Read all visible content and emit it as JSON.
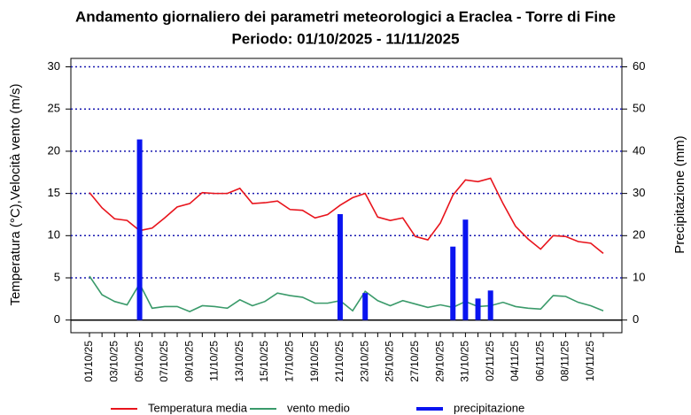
{
  "chart_data": {
    "type": "line",
    "title": "Andamento giornaliero dei parametri meteorologici a Eraclea - Torre di Fine",
    "subtitle": "Periodo:  01/10/2025 -  11/11/2025",
    "y_label": "Temperatura (°C),Velocità vento (m/s)",
    "y2_label": "Precipitazione (mm)",
    "categories": [
      "01/10/25",
      null,
      "03/10/25",
      null,
      "05/10/25",
      null,
      "07/10/25",
      null,
      "09/10/25",
      null,
      "11/10/25",
      null,
      "13/10/25",
      null,
      "15/10/25",
      null,
      "17/10/25",
      null,
      "19/10/25",
      null,
      "21/10/25",
      null,
      "23/10/25",
      null,
      "25/10/25",
      null,
      "27/10/25",
      null,
      "29/10/25",
      null,
      "31/10/25",
      null,
      "02/11/25",
      null,
      "04/11/25",
      null,
      "06/11/25",
      null,
      "08/11/25",
      null,
      "10/11/25",
      null
    ],
    "series": [
      {
        "name": "Temperatura media",
        "color": "#e8141c",
        "kind": "line",
        "values": [
          15.1,
          13.3,
          12.0,
          11.8,
          10.6,
          10.9,
          12.1,
          13.4,
          13.8,
          15.1,
          15.0,
          15.0,
          15.6,
          13.8,
          13.9,
          14.1,
          13.1,
          13.0,
          12.1,
          12.5,
          13.6,
          14.5,
          15.0,
          12.2,
          11.8,
          12.1,
          9.9,
          9.5,
          11.5,
          14.8,
          16.6,
          16.4,
          16.8,
          13.8,
          11.1,
          9.6,
          8.4,
          10.0,
          9.9,
          9.3,
          9.1,
          7.9
        ]
      },
      {
        "name": "vento medio",
        "color": "#3a9a6a",
        "kind": "line",
        "values": [
          5.2,
          3.0,
          2.2,
          1.8,
          4.3,
          1.4,
          1.6,
          1.6,
          1.0,
          1.7,
          1.6,
          1.4,
          2.4,
          1.7,
          2.2,
          3.2,
          2.9,
          2.7,
          2.0,
          2.0,
          2.3,
          1.1,
          3.4,
          2.3,
          1.7,
          2.3,
          1.9,
          1.5,
          1.8,
          1.5,
          2.2,
          1.6,
          1.7,
          2.1,
          1.6,
          1.4,
          1.3,
          2.9,
          2.8,
          2.1,
          1.7,
          1.1
        ]
      },
      {
        "name": "precipitazione",
        "color": "#0a14f0",
        "kind": "bar",
        "axis": "y2",
        "values": [
          0,
          0,
          0,
          0,
          42.8,
          0,
          0,
          0,
          0,
          0,
          0,
          0,
          0,
          0,
          0,
          0,
          0,
          0,
          0,
          0,
          25.1,
          0,
          6.4,
          0,
          0,
          0,
          0,
          0,
          0,
          17.4,
          23.8,
          5.1,
          7.0,
          0,
          0,
          0,
          0,
          0,
          0,
          0,
          0,
          0
        ]
      }
    ],
    "ylim": [
      -1.5,
      31
    ],
    "yticks": [
      0,
      5,
      10,
      15,
      20,
      25,
      30
    ],
    "y2lim": [
      -3,
      62
    ],
    "y2ticks": [
      0,
      10,
      20,
      30,
      40,
      50,
      60
    ],
    "grid": true,
    "legend": "bottom"
  }
}
